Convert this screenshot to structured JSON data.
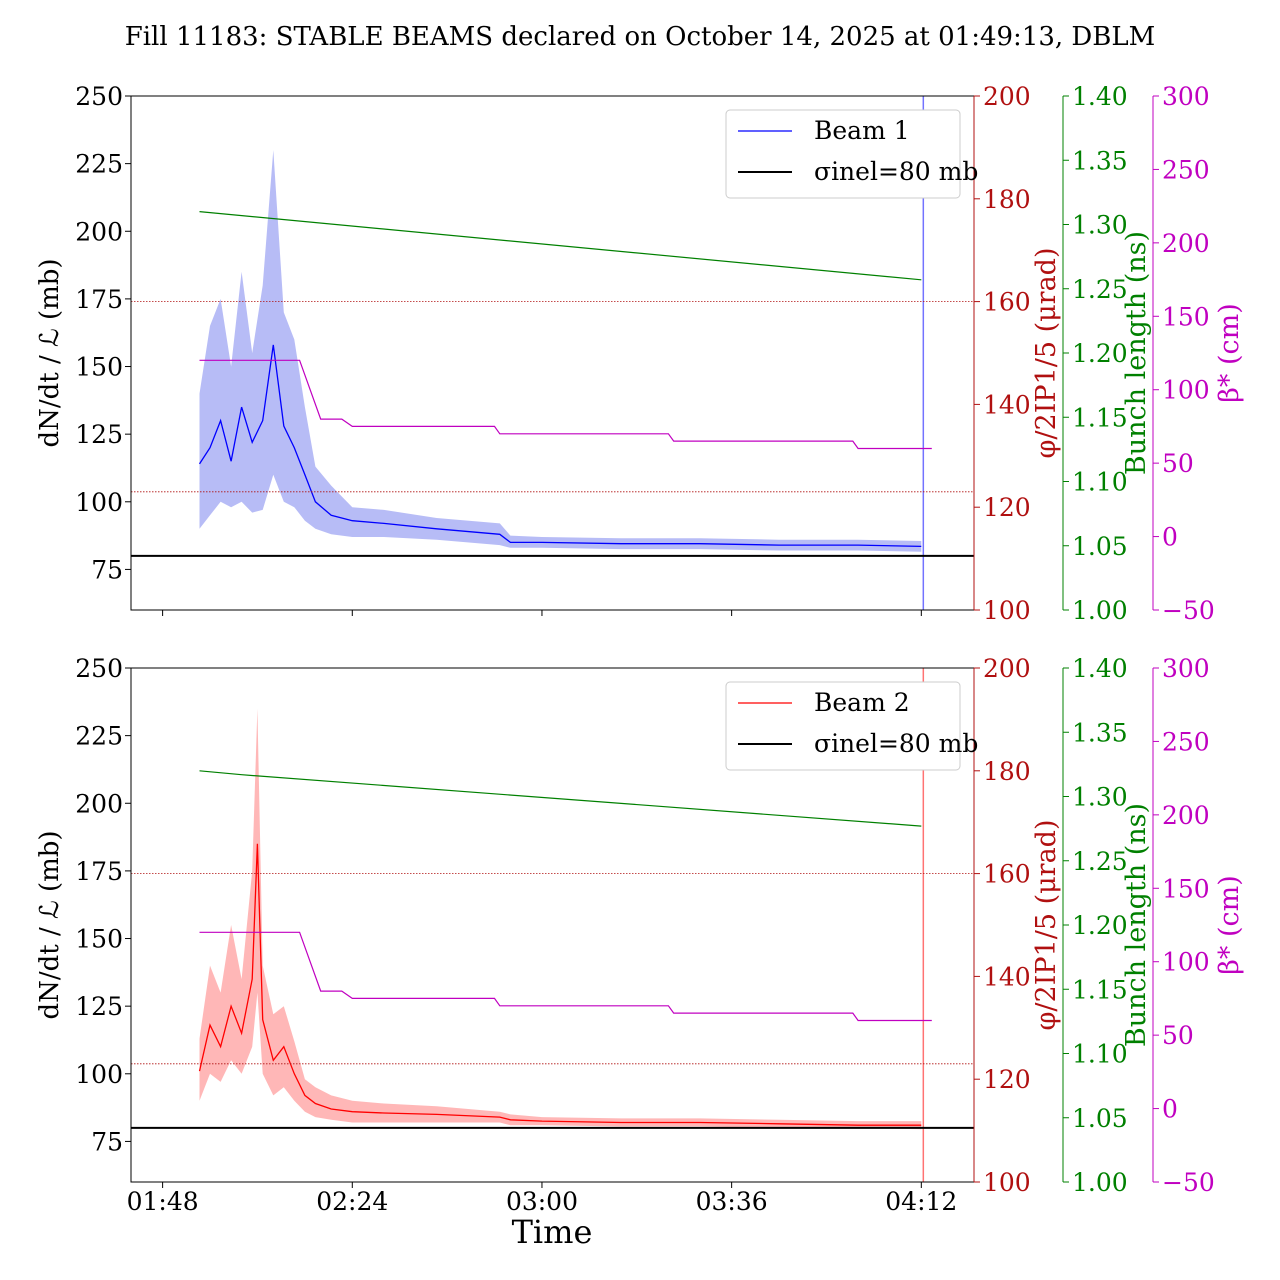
{
  "title": "Fill 11183: STABLE BEAMS declared on October 14, 2025 at 01:49:13, DBLM",
  "colors": {
    "beam1": "#0000ff",
    "beam1_band": "#aab0f5",
    "beam2": "#ff0000",
    "beam2_band": "#ffaaaa",
    "crossing_angle": "#b01010",
    "bunch_length": "#008000",
    "beta_star": "#c000c0",
    "sigma_inel": "#000000"
  },
  "x_axis": {
    "label": "Time",
    "ticks": [
      "01:48",
      "02:24",
      "03:00",
      "03:36",
      "04:12"
    ]
  },
  "chart_data": [
    {
      "type": "line",
      "panel": "top",
      "xlim": [
        "01:42",
        "04:22"
      ],
      "left_axis": {
        "label": "dN/dt / ℒ (mb)",
        "ylim": [
          60,
          250
        ],
        "ticks": [
          75,
          100,
          125,
          150,
          175,
          200,
          225,
          250
        ]
      },
      "right_axes": [
        {
          "name": "crossing_angle",
          "label": "φ/2IP1/5 (μrad)",
          "ylim": [
            100,
            200
          ],
          "ticks": [
            100,
            120,
            140,
            160,
            180,
            200
          ]
        },
        {
          "name": "bunch_length",
          "label": "Bunch length (ns)",
          "ylim": [
            1.0,
            1.4
          ],
          "ticks": [
            "1.00",
            "1.05",
            "1.10",
            "1.15",
            "1.20",
            "1.25",
            "1.30",
            "1.35",
            "1.40"
          ]
        },
        {
          "name": "beta_star",
          "label": "β* (cm)",
          "ylim": [
            -50,
            300
          ],
          "ticks": [
            "−50",
            "0",
            "50",
            "100",
            "150",
            "200",
            "250",
            "300"
          ]
        }
      ],
      "legend": {
        "position": "top-right",
        "entries": [
          "Beam 1",
          "σinel=80 mb"
        ]
      },
      "sigma_inel_mb": 80,
      "series": [
        {
          "name": "Beam 1",
          "axis": "left",
          "x": [
            "01:55",
            "01:57",
            "01:59",
            "02:01",
            "02:03",
            "02:05",
            "02:07",
            "02:09",
            "02:11",
            "02:13",
            "02:15",
            "02:17",
            "02:20",
            "02:24",
            "02:30",
            "02:40",
            "02:52",
            "02:54",
            "03:00",
            "03:15",
            "03:30",
            "03:45",
            "04:00",
            "04:12"
          ],
          "y": [
            114,
            120,
            130,
            115,
            135,
            122,
            130,
            158,
            128,
            120,
            110,
            100,
            95,
            93,
            92,
            90,
            88,
            85,
            85,
            84.5,
            84.5,
            84,
            84,
            83.5
          ],
          "band_low": [
            90,
            95,
            100,
            98,
            100,
            96,
            97,
            110,
            100,
            98,
            93,
            90,
            88,
            87,
            87,
            86,
            84,
            83,
            83,
            82.5,
            82.5,
            82,
            82,
            81.5
          ],
          "band_high": [
            140,
            165,
            175,
            150,
            185,
            155,
            180,
            230,
            170,
            160,
            135,
            113,
            106,
            98,
            97,
            94,
            92,
            87.5,
            87,
            86.5,
            86.5,
            86,
            86,
            85.5
          ]
        },
        {
          "name": "crossing_angle",
          "axis": "crossing_angle",
          "x": [
            "01:42",
            "04:22"
          ],
          "y": [
            160,
            160
          ]
        },
        {
          "name": "crossing_angle_lower",
          "axis": "crossing_angle",
          "x": [
            "01:42",
            "04:22"
          ],
          "y": [
            123,
            123
          ]
        },
        {
          "name": "bunch_length",
          "axis": "bunch_length",
          "x": [
            "01:55",
            "04:12"
          ],
          "y": [
            1.31,
            1.257
          ]
        },
        {
          "name": "beta_star",
          "axis": "beta_star",
          "x": [
            "01:55",
            "02:14",
            "02:18",
            "02:22",
            "02:24",
            "02:51",
            "02:52",
            "03:24",
            "03:25",
            "03:59",
            "04:00",
            "04:14"
          ],
          "y": [
            120,
            120,
            80,
            80,
            75,
            75,
            70,
            70,
            65,
            65,
            60,
            60
          ]
        }
      ]
    },
    {
      "type": "line",
      "panel": "bottom",
      "xlim": [
        "01:42",
        "04:22"
      ],
      "left_axis": {
        "label": "dN/dt / ℒ (mb)",
        "ylim": [
          60,
          250
        ],
        "ticks": [
          75,
          100,
          125,
          150,
          175,
          200,
          225,
          250
        ]
      },
      "right_axes": [
        {
          "name": "crossing_angle",
          "label": "φ/2IP1/5 (μrad)",
          "ylim": [
            100,
            200
          ],
          "ticks": [
            100,
            120,
            140,
            160,
            180,
            200
          ]
        },
        {
          "name": "bunch_length",
          "label": "Bunch length (ns)",
          "ylim": [
            1.0,
            1.4
          ],
          "ticks": [
            "1.00",
            "1.05",
            "1.10",
            "1.15",
            "1.20",
            "1.25",
            "1.30",
            "1.35",
            "1.40"
          ]
        },
        {
          "name": "beta_star",
          "label": "β* (cm)",
          "ylim": [
            -50,
            300
          ],
          "ticks": [
            "−50",
            "0",
            "50",
            "100",
            "150",
            "200",
            "250",
            "300"
          ]
        }
      ],
      "legend": {
        "position": "top-right",
        "entries": [
          "Beam 2",
          "σinel=80 mb"
        ]
      },
      "sigma_inel_mb": 80,
      "series": [
        {
          "name": "Beam 2",
          "axis": "left",
          "x": [
            "01:55",
            "01:57",
            "01:59",
            "02:01",
            "02:03",
            "02:05",
            "02:06",
            "02:07",
            "02:09",
            "02:11",
            "02:13",
            "02:15",
            "02:17",
            "02:20",
            "02:24",
            "02:30",
            "02:40",
            "02:52",
            "02:54",
            "03:00",
            "03:15",
            "03:30",
            "03:45",
            "04:00",
            "04:12"
          ],
          "y": [
            101,
            118,
            110,
            125,
            115,
            135,
            185,
            120,
            105,
            110,
            100,
            92,
            89,
            87,
            86,
            85.5,
            85,
            84,
            83,
            82.5,
            82,
            82,
            81.5,
            81,
            81
          ],
          "band_low": [
            90,
            100,
            97,
            105,
            100,
            110,
            130,
            100,
            92,
            95,
            90,
            86,
            84,
            83,
            82,
            82,
            82,
            82,
            81,
            81,
            80.5,
            80.5,
            80,
            80,
            79.5
          ],
          "band_high": [
            113,
            140,
            130,
            155,
            135,
            175,
            235,
            140,
            122,
            125,
            112,
            98,
            95,
            92,
            90,
            89,
            88,
            86,
            85,
            84,
            83.5,
            83.5,
            83,
            82.5,
            82.5
          ]
        },
        {
          "name": "crossing_angle",
          "axis": "crossing_angle",
          "x": [
            "01:42",
            "04:22"
          ],
          "y": [
            160,
            160
          ]
        },
        {
          "name": "crossing_angle_lower",
          "axis": "crossing_angle",
          "x": [
            "01:42",
            "04:22"
          ],
          "y": [
            123,
            123
          ]
        },
        {
          "name": "bunch_length",
          "axis": "bunch_length",
          "x": [
            "01:55",
            "02:03",
            "04:12"
          ],
          "y": [
            1.32,
            1.317,
            1.277
          ]
        },
        {
          "name": "beta_star",
          "axis": "beta_star",
          "x": [
            "01:55",
            "02:14",
            "02:18",
            "02:22",
            "02:24",
            "02:51",
            "02:52",
            "03:24",
            "03:25",
            "03:59",
            "04:00",
            "04:14"
          ],
          "y": [
            120,
            120,
            80,
            80,
            75,
            75,
            70,
            70,
            65,
            65,
            60,
            60
          ]
        }
      ]
    }
  ]
}
